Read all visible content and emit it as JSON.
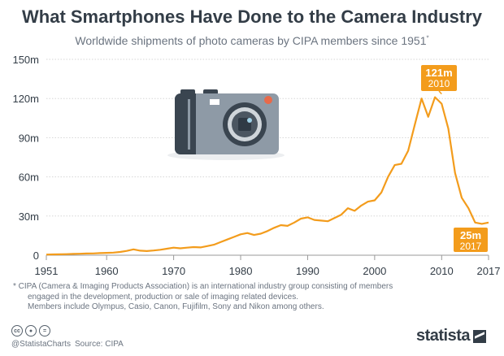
{
  "title": "What Smartphones Have Done to the Camera Industry",
  "subtitle": "Worldwide shipments of photo cameras by CIPA members since 1951",
  "subtitle_marker": "*",
  "footnote": {
    "line1": "* CIPA (Camera & Imaging Products Association) is an international industry group consisting of members",
    "line2": "engaged in the development, production or sale of imaging related devices.",
    "line3": "Members include Olympus, Casio, Canon, Fujifilm, Sony and Nikon among others."
  },
  "handle": "@StatistaCharts",
  "source": "Source: CIPA",
  "brand": "statista",
  "license_icons": [
    "cc-icon",
    "by-icon",
    "nd-icon"
  ],
  "colors": {
    "line": "#f39c1c",
    "label_bg": "#f39c1c",
    "grid": "#d6d6d6",
    "camera_body": "#8e9aa6",
    "camera_dark": "#3a4550"
  },
  "chart_data": {
    "type": "line",
    "title": "What Smartphones Have Done to the Camera Industry",
    "xlabel": "",
    "ylabel": "",
    "xlim": [
      1951,
      2017
    ],
    "ylim": [
      0,
      150
    ],
    "yticks": [
      0,
      30,
      60,
      90,
      120,
      150
    ],
    "ytick_labels": [
      "0",
      "30m",
      "60m",
      "90m",
      "120m",
      "150m"
    ],
    "xticks": [
      1951,
      1960,
      1970,
      1980,
      1990,
      2000,
      2010,
      2017
    ],
    "grid": true,
    "series": [
      {
        "x": [
          1951,
          1952,
          1953,
          1954,
          1955,
          1956,
          1957,
          1958,
          1959,
          1960,
          1961,
          1962,
          1963,
          1964,
          1965,
          1966,
          1967,
          1968,
          1969,
          1970,
          1971,
          1972,
          1973,
          1974,
          1975,
          1976,
          1977,
          1978,
          1979,
          1980,
          1981,
          1982,
          1983,
          1984,
          1985,
          1986,
          1987,
          1988,
          1989,
          1990,
          1991,
          1992,
          1993,
          1994,
          1995,
          1996,
          1997,
          1998,
          1999,
          2000,
          2001,
          2002,
          2003,
          2004,
          2005,
          2006,
          2007,
          2008,
          2009,
          2010,
          2011,
          2012,
          2013,
          2014,
          2015,
          2016,
          2017
        ],
        "values": [
          0.5,
          0.6,
          0.7,
          0.8,
          1.0,
          1.1,
          1.3,
          1.4,
          1.6,
          1.8,
          2.0,
          2.5,
          3.3,
          4.5,
          3.5,
          3.2,
          3.6,
          4.2,
          5.0,
          5.8,
          5.3,
          5.8,
          6.2,
          6.0,
          7.0,
          8.0,
          10,
          12,
          14,
          16,
          17,
          15.5,
          16.5,
          18.5,
          21,
          23,
          22.5,
          25,
          28,
          29,
          27,
          26.5,
          26,
          28.5,
          31,
          36,
          34,
          38,
          41,
          42,
          48,
          60,
          69,
          70,
          80,
          100,
          120,
          106,
          121,
          116,
          97,
          63,
          44,
          36,
          25,
          24,
          25
        ]
      }
    ],
    "annotations": [
      {
        "value_label": "121m",
        "year_label": "2010",
        "x": 2010,
        "y": 121
      },
      {
        "value_label": "25m",
        "year_label": "2017",
        "x": 2017,
        "y": 25
      }
    ]
  }
}
